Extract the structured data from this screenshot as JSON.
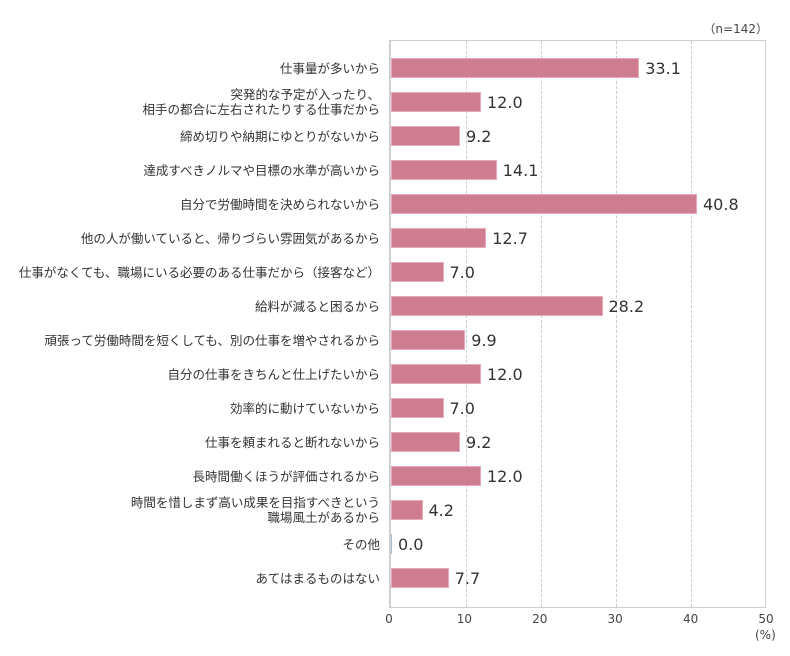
{
  "chart_data": {
    "type": "bar",
    "orientation": "horizontal",
    "title": "",
    "sample_size_label": "（n=142）",
    "xlabel": "",
    "x_unit_label": "(%)",
    "ylabel": "",
    "xlim": [
      0,
      50
    ],
    "x_ticks": [
      "0",
      "10",
      "20",
      "30",
      "40",
      "50"
    ],
    "grid": "vertical dashed",
    "legend": "none",
    "bar_color": "#d07d92",
    "categories": [
      "仕事量が多いから",
      "突発的な予定が入ったり、\n相手の都合に左右されたりする仕事だから",
      "締め切りや納期にゆとりがないから",
      "達成すべきノルマや目標の水準が高いから",
      "自分で労働時間を決められないから",
      "他の人が働いていると、帰りづらい雰囲気があるから",
      "仕事がなくても、職場にいる必要のある仕事だから（接客など）",
      "給料が減ると困るから",
      "頑張って労働時間を短くしても、別の仕事を増やされるから",
      "自分の仕事をきちんと仕上げたいから",
      "効率的に動けていないから",
      "仕事を頼まれると断れないから",
      "長時間働くほうが評価されるから",
      "時間を惜しまず高い成果を目指すべきという\n職場風土があるから",
      "その他",
      "あてはまるものはない"
    ],
    "values": [
      33.1,
      12.0,
      9.2,
      14.1,
      40.8,
      12.7,
      7.0,
      28.2,
      9.9,
      12.0,
      7.0,
      9.2,
      12.0,
      4.2,
      0.0,
      7.7
    ],
    "value_labels": [
      "33.1",
      "12.0",
      "9.2",
      "14.1",
      "40.8",
      "12.7",
      "7.0",
      "28.2",
      "9.9",
      "12.0",
      "7.0",
      "9.2",
      "12.0",
      "4.2",
      "0.0",
      "7.7"
    ]
  }
}
